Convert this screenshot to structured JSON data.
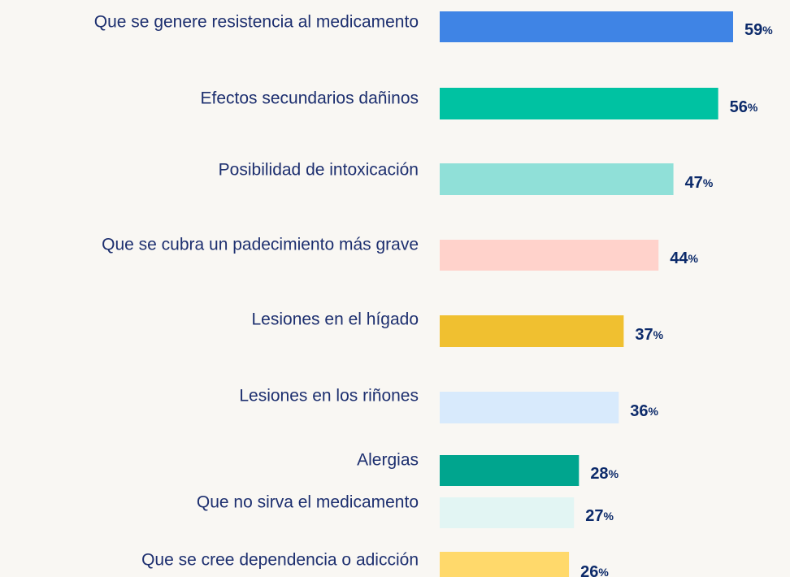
{
  "chart_data": {
    "type": "barh",
    "categories": [
      "Que se genere resistencia al medicamento",
      "Efectos secundarios dañinos",
      "Posibilidad de intoxicación",
      "Que se cubra un padecimiento más grave",
      "Lesiones en el hígado",
      "Lesiones en los riñones",
      "Alergias",
      "Que no sirva el medicamento",
      "Que se cree dependencia o adicción"
    ],
    "values": [
      59,
      56,
      47,
      44,
      37,
      36,
      28,
      27,
      26
    ],
    "value_labels": [
      "59%",
      "56%",
      "47%",
      "44%",
      "37%",
      "36%",
      "28%",
      "27%",
      "26%"
    ],
    "colors": [
      "#3f84e5",
      "#00c2a2",
      "#90e0d8",
      "#ffd2cb",
      "#f0c030",
      "#d8eafc",
      "#00a58e",
      "#e2f5f3",
      "#ffd96b"
    ],
    "xlim": [
      0,
      59
    ]
  }
}
